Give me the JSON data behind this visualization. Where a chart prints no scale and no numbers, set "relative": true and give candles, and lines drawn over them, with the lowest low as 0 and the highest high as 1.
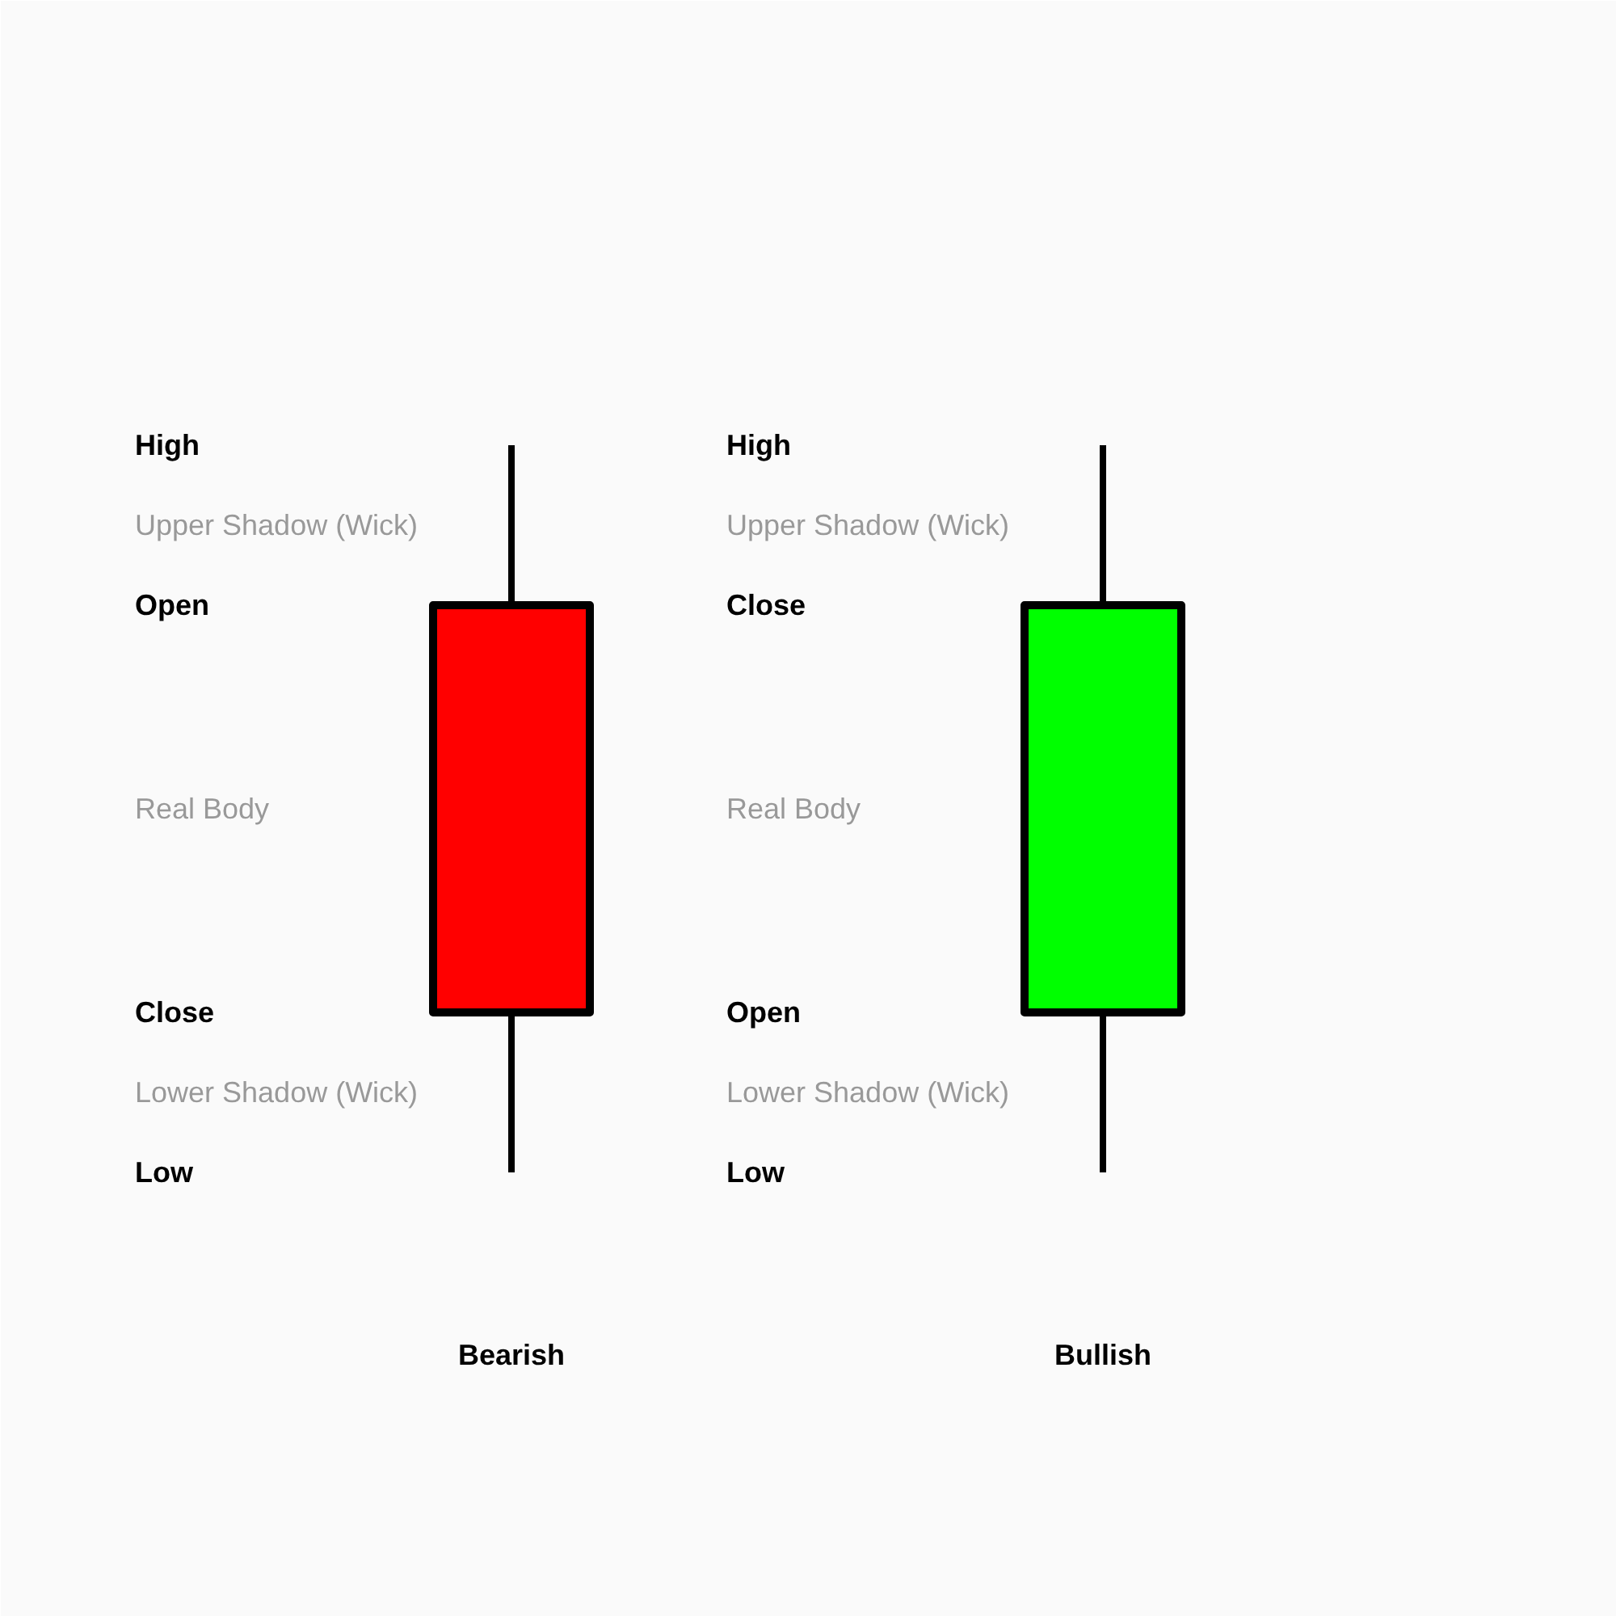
{
  "chart_data": {
    "type": "candlestick",
    "relative": true,
    "categories": [
      "Bearish",
      "Bullish"
    ],
    "ohlc": [
      [
        0.78,
        1,
        0,
        0.22
      ],
      [
        0.22,
        1,
        0,
        0.78
      ]
    ],
    "colors": [
      "#ff0000",
      "#00ff00"
    ],
    "annotations": [
      "High",
      "Upper Shadow (Wick)",
      "Open",
      "Real Body",
      "Close",
      "Lower Shadow (Wick)",
      "Low",
      "High",
      "Upper Shadow (Wick)",
      "Close",
      "Real Body",
      "Open",
      "Lower Shadow (Wick)",
      "Low"
    ]
  }
}
